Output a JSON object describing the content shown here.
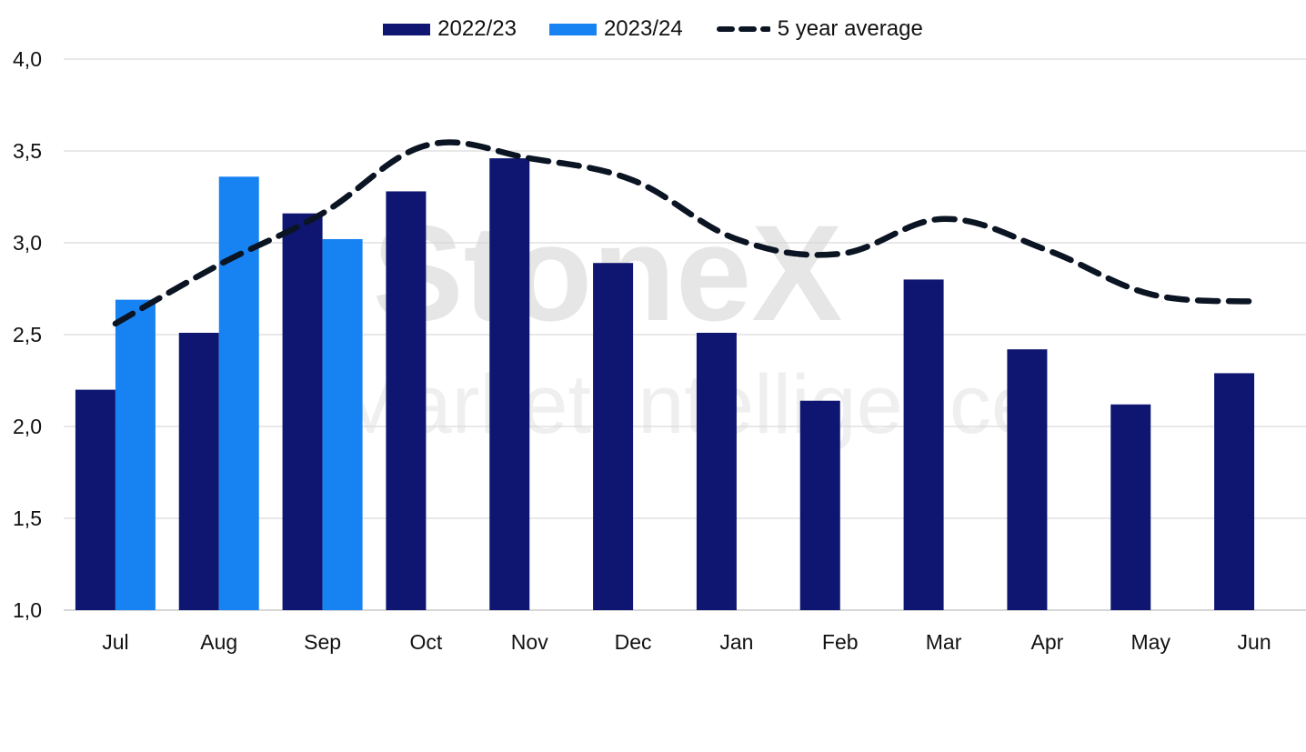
{
  "watermark": {
    "brand": "StoneX",
    "tagline": "Market Intelligence"
  },
  "legend": {
    "series1": "2022/23",
    "series2": "2023/24",
    "series3": "5 year average"
  },
  "colors": {
    "series1": "#0f1671",
    "series2": "#1783f2",
    "average": "#0b1423",
    "grid": "#d9d9d9",
    "axis": "#bfbfbf"
  },
  "chart_data": {
    "type": "bar",
    "categories": [
      "Jul",
      "Aug",
      "Sep",
      "Oct",
      "Nov",
      "Dec",
      "Jan",
      "Feb",
      "Mar",
      "Apr",
      "May",
      "Jun"
    ],
    "series": [
      {
        "name": "2022/23",
        "type": "bar",
        "values": [
          2.2,
          2.51,
          3.16,
          3.28,
          3.46,
          2.89,
          2.51,
          2.14,
          2.8,
          2.42,
          2.12,
          2.29
        ]
      },
      {
        "name": "2023/24",
        "type": "bar",
        "values": [
          2.69,
          3.36,
          3.02,
          null,
          null,
          null,
          null,
          null,
          null,
          null,
          null,
          null
        ]
      },
      {
        "name": "5 year average",
        "type": "line",
        "style": "dashed",
        "values": [
          2.56,
          2.88,
          3.16,
          3.53,
          3.46,
          3.34,
          3.02,
          2.94,
          3.13,
          2.96,
          2.72,
          2.68
        ]
      }
    ],
    "yticks": [
      "1,0",
      "1,5",
      "2,0",
      "2,5",
      "3,0",
      "3,5",
      "4,0"
    ],
    "ylim": [
      1.0,
      4.0
    ],
    "grid": true,
    "legend_position": "top-center"
  }
}
